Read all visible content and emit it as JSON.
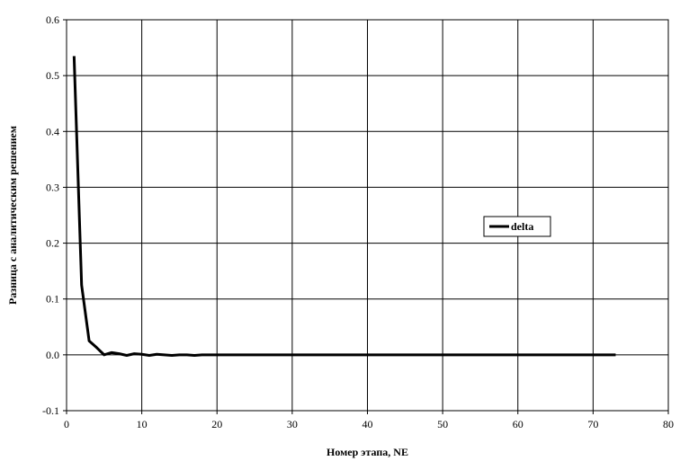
{
  "chart_data": {
    "type": "line",
    "title": "",
    "xlabel": "Номер этапа, NE",
    "ylabel": "Разница с аналитическим решением",
    "xlim": [
      0,
      80
    ],
    "ylim": [
      -0.1,
      0.6
    ],
    "xticks": [
      "0",
      "10",
      "20",
      "30",
      "40",
      "50",
      "60",
      "70",
      "80"
    ],
    "yticks": [
      "-0.1",
      "0.0",
      "0.1",
      "0.2",
      "0.3",
      "0.4",
      "0.5",
      "0.6"
    ],
    "grid": true,
    "legend_position": "right-center",
    "series": [
      {
        "name": "delta",
        "color": "#000000",
        "x": [
          1,
          2,
          3,
          4,
          5,
          6,
          7,
          8,
          9,
          10,
          11,
          12,
          13,
          14,
          15,
          16,
          17,
          18,
          19,
          20,
          21,
          22,
          23,
          24,
          25,
          26,
          27,
          28,
          29,
          30,
          31,
          32,
          33,
          34,
          35,
          36,
          37,
          38,
          39,
          40,
          41,
          42,
          43,
          44,
          45,
          46,
          47,
          48,
          49,
          50,
          51,
          52,
          53,
          54,
          55,
          56,
          57,
          58,
          59,
          60,
          61,
          62,
          63,
          64,
          65,
          66,
          67,
          68,
          69,
          70,
          71,
          72,
          73
        ],
        "y": [
          0.535,
          0.125,
          0.025,
          0.013,
          0.0,
          0.004,
          0.002,
          -0.001,
          0.002,
          0.001,
          -0.001,
          0.001,
          0.0,
          -0.001,
          0.0,
          0.0,
          -0.001,
          0.0,
          0.0,
          0.0,
          0,
          0,
          0,
          0,
          0,
          0,
          0,
          0,
          0,
          0,
          0,
          0,
          0,
          0,
          0,
          0,
          0,
          0,
          0,
          0,
          0,
          0,
          0,
          0,
          0,
          0,
          0,
          0,
          0,
          0,
          0,
          0,
          0,
          0,
          0,
          0,
          0,
          0,
          0,
          0,
          0,
          0,
          0,
          0,
          0,
          0,
          0,
          0,
          0,
          0,
          0,
          0,
          0
        ]
      }
    ]
  }
}
